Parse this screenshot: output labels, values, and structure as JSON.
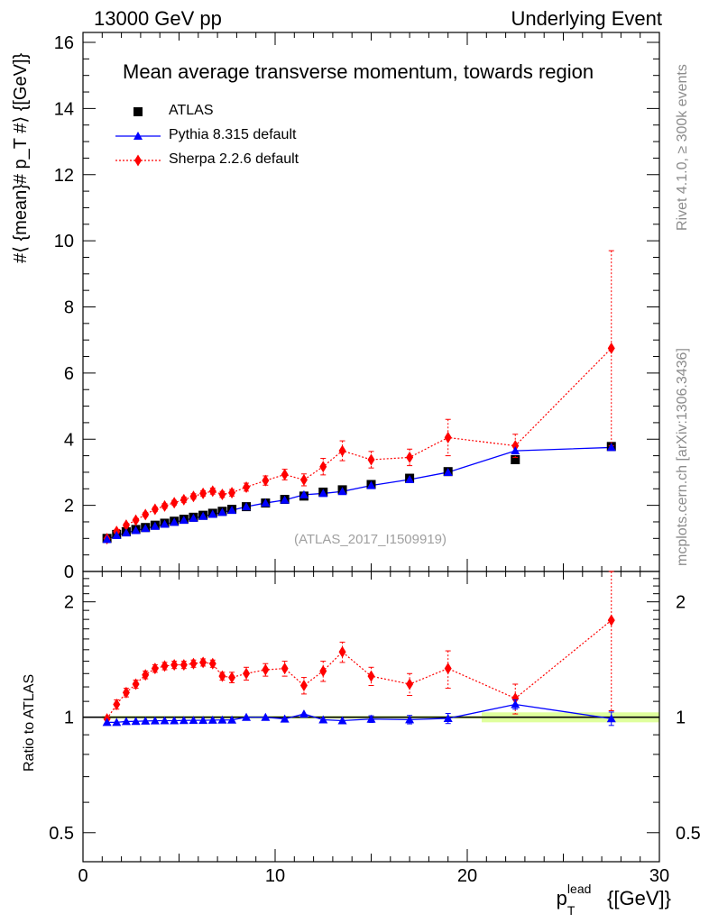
{
  "header": {
    "left": "13000 GeV pp",
    "right": "Underlying Event"
  },
  "side_text": {
    "rivet": "Rivet 4.1.0, ≥ 300k events",
    "mcplots": "mcplots.cern.ch [arXiv:1306.3436]"
  },
  "chart_data": {
    "type": "scatter",
    "title": "Mean average transverse momentum, towards region",
    "analysis_id": "(ATLAS_2017_I1509919)",
    "xlabel": "p_T^lead [[GeV]]",
    "xlabel_main": "p",
    "xlabel_sub": "T",
    "xlabel_sup": "lead",
    "xlabel_unit": "{[GeV]}",
    "ylabel": "#⟨ {mean}# p_T #⟩ {[GeV]}",
    "ratio_ylabel": "Ratio to ATLAS",
    "xlim": [
      0,
      30
    ],
    "ylim": [
      0,
      16.3
    ],
    "ratio_ylim": [
      0.42,
      2.4
    ],
    "x_ticks": [
      0,
      10,
      20,
      30
    ],
    "y_ticks": [
      0,
      2,
      4,
      6,
      8,
      10,
      12,
      14,
      16
    ],
    "ratio_ticks": [
      0.5,
      1,
      2
    ],
    "legend": [
      {
        "name": "ATLAS",
        "marker": "square",
        "color": "#000000"
      },
      {
        "name": "Pythia 8.315 default",
        "marker": "triangle",
        "color": "#0000ff"
      },
      {
        "name": "Sherpa 2.2.6 default",
        "marker": "diamond",
        "color": "#ff0000"
      }
    ],
    "x": [
      1.25,
      1.75,
      2.25,
      2.75,
      3.25,
      3.75,
      4.25,
      4.75,
      5.25,
      5.75,
      6.25,
      6.75,
      7.25,
      7.75,
      8.5,
      9.5,
      10.5,
      11.5,
      12.5,
      13.5,
      15.0,
      17.0,
      19.0,
      22.5,
      27.5
    ],
    "series": [
      {
        "name": "ATLAS",
        "values": [
          1.0,
          1.12,
          1.2,
          1.27,
          1.33,
          1.4,
          1.46,
          1.52,
          1.58,
          1.64,
          1.7,
          1.76,
          1.82,
          1.88,
          1.96,
          2.07,
          2.18,
          2.28,
          2.4,
          2.47,
          2.63,
          2.82,
          3.02,
          3.38,
          3.78
        ]
      },
      {
        "name": "Pythia 8.315 default",
        "values": [
          0.97,
          1.09,
          1.17,
          1.24,
          1.3,
          1.37,
          1.43,
          1.49,
          1.55,
          1.61,
          1.67,
          1.73,
          1.79,
          1.85,
          1.96,
          2.07,
          2.16,
          2.32,
          2.36,
          2.42,
          2.6,
          2.78,
          3.0,
          3.65,
          3.75
        ],
        "errors": [
          0.02,
          0.02,
          0.02,
          0.02,
          0.02,
          0.02,
          0.02,
          0.02,
          0.02,
          0.02,
          0.02,
          0.02,
          0.02,
          0.02,
          0.03,
          0.03,
          0.03,
          0.04,
          0.04,
          0.05,
          0.06,
          0.08,
          0.1,
          0.1,
          0.12
        ]
      },
      {
        "name": "Sherpa 2.2.6 default",
        "values": [
          0.99,
          1.21,
          1.4,
          1.55,
          1.72,
          1.88,
          1.98,
          2.08,
          2.17,
          2.27,
          2.36,
          2.43,
          2.33,
          2.38,
          2.55,
          2.75,
          2.93,
          2.77,
          3.17,
          3.65,
          3.38,
          3.45,
          4.05,
          3.8,
          6.75
        ],
        "errors": [
          0.03,
          0.05,
          0.05,
          0.05,
          0.06,
          0.06,
          0.07,
          0.07,
          0.08,
          0.08,
          0.08,
          0.09,
          0.09,
          0.1,
          0.12,
          0.14,
          0.16,
          0.18,
          0.25,
          0.3,
          0.25,
          0.25,
          0.55,
          0.35,
          2.95
        ]
      }
    ],
    "ratio_series": [
      {
        "name": "Pythia 8.315 default",
        "values": [
          0.97,
          0.97,
          0.975,
          0.976,
          0.978,
          0.979,
          0.98,
          0.98,
          0.981,
          0.982,
          0.982,
          0.983,
          0.984,
          0.984,
          1.0,
          1.0,
          0.99,
          1.02,
          0.985,
          0.98,
          0.989,
          0.986,
          0.993,
          1.08,
          0.992
        ],
        "errors": [
          0.01,
          0.01,
          0.01,
          0.01,
          0.01,
          0.01,
          0.01,
          0.01,
          0.01,
          0.01,
          0.01,
          0.01,
          0.01,
          0.01,
          0.01,
          0.01,
          0.01,
          0.015,
          0.015,
          0.015,
          0.02,
          0.025,
          0.03,
          0.03,
          0.04
        ]
      },
      {
        "name": "Sherpa 2.2.6 default",
        "values": [
          0.99,
          1.08,
          1.16,
          1.22,
          1.29,
          1.34,
          1.36,
          1.37,
          1.37,
          1.38,
          1.39,
          1.38,
          1.28,
          1.27,
          1.3,
          1.33,
          1.34,
          1.21,
          1.32,
          1.48,
          1.28,
          1.22,
          1.34,
          1.12,
          1.79
        ],
        "errors": [
          0.02,
          0.03,
          0.03,
          0.03,
          0.03,
          0.03,
          0.03,
          0.03,
          0.03,
          0.03,
          0.03,
          0.03,
          0.03,
          0.04,
          0.05,
          0.05,
          0.06,
          0.06,
          0.08,
          0.09,
          0.07,
          0.08,
          0.15,
          0.1,
          0.75
        ]
      }
    ],
    "ratio_band_colors": {
      "stat": "#ffff80",
      "syst": "#d9ff8c"
    }
  }
}
